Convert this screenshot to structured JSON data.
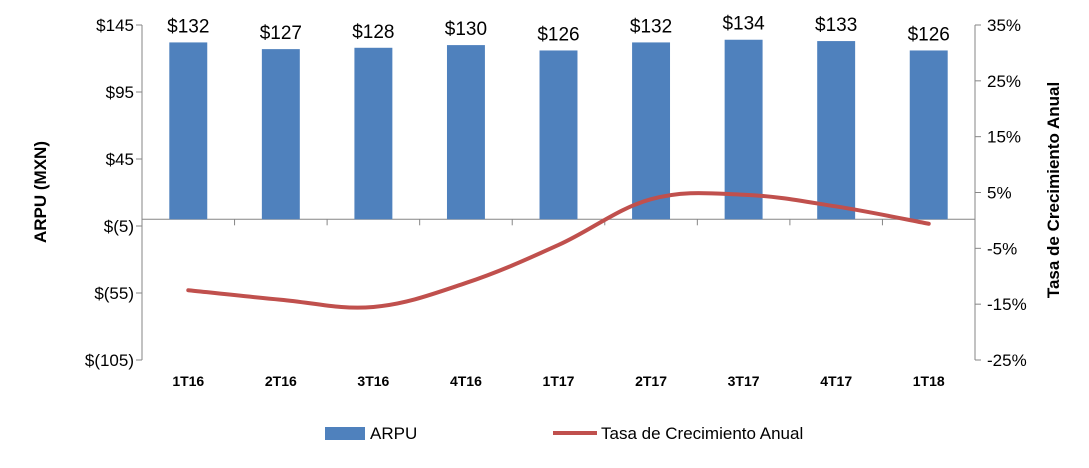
{
  "chart_data": {
    "type": "bar",
    "categories": [
      "1T16",
      "2T16",
      "3T16",
      "4T16",
      "1T17",
      "2T17",
      "3T17",
      "4T17",
      "1T18"
    ],
    "series": [
      {
        "name": "ARPU",
        "type": "bar",
        "axis": "left",
        "color": "#4F81BD",
        "values": [
          132,
          127,
          128,
          130,
          126,
          132,
          134,
          133,
          126
        ],
        "labels": [
          "$132",
          "$127",
          "$128",
          "$130",
          "$126",
          "$132",
          "$134",
          "$133",
          "$126"
        ]
      },
      {
        "name": "Tasa de Crecimiento Anual",
        "type": "line",
        "axis": "right",
        "color": "#C0504D",
        "values": [
          -12.5,
          -14.2,
          -15.5,
          -11.2,
          -4.4,
          3.8,
          4.6,
          2.5,
          -0.6
        ]
      }
    ],
    "left_axis": {
      "label": "ARPU (MXN)",
      "min": -105,
      "max": 145,
      "ticks": [
        145,
        95,
        45,
        -5,
        -55,
        -105
      ],
      "tick_labels": [
        "$145",
        "$95",
        "$45",
        "$(5)",
        "$(55)",
        "$(105)"
      ]
    },
    "right_axis": {
      "label": "Tasa de Crecimiento Anual",
      "min": -25,
      "max": 35,
      "ticks": [
        35,
        25,
        15,
        5,
        -5,
        -15,
        -25
      ],
      "tick_labels": [
        "35%",
        "25%",
        "15%",
        "5%",
        "-5%",
        "-15%",
        "-25%"
      ]
    },
    "legend": {
      "position": "bottom",
      "items": [
        "ARPU",
        "Tasa de Crecimiento Anual"
      ]
    },
    "grid": false
  }
}
